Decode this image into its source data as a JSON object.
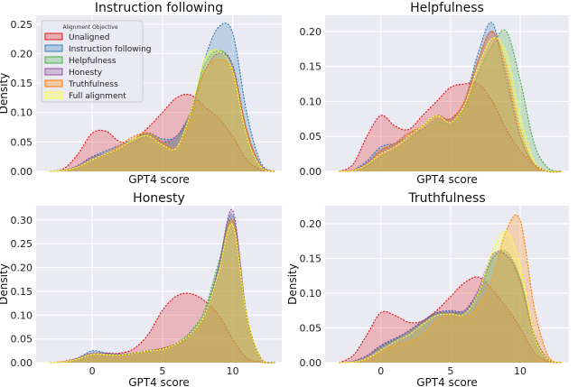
{
  "chart_data": [
    {
      "type": "area",
      "title": "Instruction following",
      "xlabel": "GPT4 score",
      "ylabel": "Density",
      "xlim": [
        -4,
        13.5
      ],
      "ylim": [
        0,
        0.265
      ],
      "yticks": [
        "0.00",
        "0.05",
        "0.10",
        "0.15",
        "0.20",
        "0.25"
      ],
      "xticks": [],
      "grid": true,
      "legend": {
        "title": "Alignment Objective",
        "placement": "top-left"
      },
      "x": [
        -3,
        -2,
        -1,
        0,
        1,
        2,
        3,
        4,
        5,
        6,
        7,
        8,
        9,
        10,
        11,
        12,
        13
      ],
      "series": [
        {
          "name": "Unaligned",
          "values": [
            0,
            0.005,
            0.03,
            0.065,
            0.068,
            0.05,
            0.055,
            0.075,
            0.1,
            0.125,
            0.13,
            0.11,
            0.09,
            0.06,
            0.02,
            0.003,
            0
          ]
        },
        {
          "name": "Instruction following",
          "values": [
            0,
            0.002,
            0.01,
            0.025,
            0.035,
            0.045,
            0.055,
            0.065,
            0.055,
            0.06,
            0.1,
            0.19,
            0.245,
            0.235,
            0.1,
            0.015,
            0
          ]
        },
        {
          "name": "Helpfulness",
          "values": [
            0,
            0.002,
            0.01,
            0.025,
            0.03,
            0.04,
            0.055,
            0.065,
            0.05,
            0.055,
            0.1,
            0.18,
            0.205,
            0.18,
            0.07,
            0.01,
            0
          ]
        },
        {
          "name": "Honesty",
          "values": [
            0,
            0.002,
            0.01,
            0.025,
            0.03,
            0.04,
            0.05,
            0.06,
            0.05,
            0.06,
            0.1,
            0.17,
            0.2,
            0.18,
            0.07,
            0.01,
            0
          ]
        },
        {
          "name": "Truthfulness",
          "values": [
            0,
            0.002,
            0.008,
            0.02,
            0.03,
            0.045,
            0.06,
            0.065,
            0.05,
            0.04,
            0.09,
            0.17,
            0.19,
            0.17,
            0.07,
            0.01,
            0
          ]
        },
        {
          "name": "Full alignment",
          "values": [
            0,
            0.002,
            0.008,
            0.02,
            0.03,
            0.04,
            0.055,
            0.06,
            0.045,
            0.04,
            0.1,
            0.19,
            0.205,
            0.17,
            0.06,
            0.008,
            0
          ]
        }
      ]
    },
    {
      "type": "area",
      "title": "Helpfulness",
      "xlabel": "GPT4 score",
      "ylabel": "",
      "xlim": [
        -4,
        13.5
      ],
      "ylim": [
        0,
        0.223
      ],
      "yticks": [
        "0.00",
        "0.05",
        "0.10",
        "0.15",
        "0.20"
      ],
      "xticks": [],
      "grid": true,
      "x": [
        -3,
        -2,
        -1,
        0,
        1,
        2,
        3,
        4,
        5,
        6,
        7,
        8,
        9,
        10,
        11,
        12,
        13
      ],
      "series": [
        {
          "name": "Unaligned",
          "values": [
            0,
            0.01,
            0.05,
            0.08,
            0.065,
            0.06,
            0.08,
            0.1,
            0.12,
            0.125,
            0.125,
            0.1,
            0.06,
            0.03,
            0.01,
            0,
            0
          ]
        },
        {
          "name": "Instruction following",
          "values": [
            0,
            0.002,
            0.015,
            0.035,
            0.04,
            0.05,
            0.065,
            0.08,
            0.075,
            0.1,
            0.17,
            0.212,
            0.13,
            0.05,
            0.01,
            0,
            0
          ]
        },
        {
          "name": "Helpfulness",
          "values": [
            0,
            0.001,
            0.008,
            0.02,
            0.03,
            0.045,
            0.06,
            0.07,
            0.07,
            0.09,
            0.14,
            0.18,
            0.2,
            0.13,
            0.04,
            0.005,
            0
          ]
        },
        {
          "name": "Honesty",
          "values": [
            0,
            0.002,
            0.012,
            0.03,
            0.04,
            0.055,
            0.06,
            0.075,
            0.075,
            0.1,
            0.16,
            0.2,
            0.14,
            0.05,
            0.01,
            0,
            0
          ]
        },
        {
          "name": "Truthfulness",
          "values": [
            0,
            0.002,
            0.01,
            0.03,
            0.04,
            0.055,
            0.065,
            0.08,
            0.075,
            0.1,
            0.16,
            0.2,
            0.15,
            0.06,
            0.01,
            0,
            0
          ]
        },
        {
          "name": "Full alignment",
          "values": [
            0,
            0.001,
            0.01,
            0.025,
            0.035,
            0.05,
            0.065,
            0.08,
            0.07,
            0.095,
            0.15,
            0.19,
            0.17,
            0.08,
            0.015,
            0,
            0
          ]
        }
      ]
    },
    {
      "type": "area",
      "title": "Honesty",
      "xlabel": "GPT4 score",
      "ylabel": "Density",
      "xlim": [
        -4,
        13.5
      ],
      "ylim": [
        0,
        0.33
      ],
      "yticks": [
        "0.00",
        "0.05",
        "0.10",
        "0.15",
        "0.20",
        "0.25",
        "0.30"
      ],
      "xticks": [
        "0",
        "5",
        "10"
      ],
      "grid": true,
      "x": [
        -3,
        -2,
        -1,
        0,
        1,
        2,
        3,
        4,
        5,
        6,
        7,
        8,
        9,
        10,
        11,
        12,
        13
      ],
      "series": [
        {
          "name": "Unaligned",
          "values": [
            0,
            0.003,
            0.01,
            0.02,
            0.02,
            0.02,
            0.03,
            0.06,
            0.11,
            0.14,
            0.145,
            0.13,
            0.1,
            0.05,
            0.01,
            0.001,
            0
          ]
        },
        {
          "name": "Instruction following",
          "values": [
            0,
            0.002,
            0.01,
            0.025,
            0.02,
            0.017,
            0.02,
            0.025,
            0.03,
            0.04,
            0.06,
            0.1,
            0.2,
            0.31,
            0.1,
            0.01,
            0
          ]
        },
        {
          "name": "Helpfulness",
          "values": [
            0,
            0.002,
            0.01,
            0.02,
            0.018,
            0.017,
            0.02,
            0.025,
            0.03,
            0.04,
            0.065,
            0.11,
            0.21,
            0.3,
            0.1,
            0.01,
            0
          ]
        },
        {
          "name": "Honesty",
          "values": [
            0,
            0.002,
            0.01,
            0.02,
            0.018,
            0.017,
            0.02,
            0.025,
            0.03,
            0.04,
            0.06,
            0.1,
            0.2,
            0.32,
            0.1,
            0.01,
            0
          ]
        },
        {
          "name": "Truthfulness",
          "values": [
            0,
            0.002,
            0.008,
            0.018,
            0.017,
            0.016,
            0.02,
            0.025,
            0.03,
            0.04,
            0.06,
            0.1,
            0.19,
            0.3,
            0.1,
            0.01,
            0
          ]
        },
        {
          "name": "Full alignment",
          "values": [
            0,
            0.002,
            0.008,
            0.018,
            0.017,
            0.016,
            0.02,
            0.025,
            0.028,
            0.04,
            0.06,
            0.1,
            0.19,
            0.29,
            0.1,
            0.01,
            0
          ]
        }
      ]
    },
    {
      "type": "area",
      "title": "Truthfulness",
      "xlabel": "GPT4 score",
      "ylabel": "Density",
      "xlim": [
        -4,
        13.5
      ],
      "ylim": [
        0,
        0.226
      ],
      "yticks": [
        "0.00",
        "0.05",
        "0.10",
        "0.15",
        "0.20"
      ],
      "xticks": [
        "0",
        "5",
        "10"
      ],
      "grid": true,
      "x": [
        -3,
        -2,
        -1,
        0,
        1,
        2,
        3,
        4,
        5,
        6,
        7,
        8,
        9,
        10,
        11,
        12,
        13
      ],
      "series": [
        {
          "name": "Unaligned",
          "values": [
            0,
            0.01,
            0.04,
            0.072,
            0.068,
            0.058,
            0.06,
            0.075,
            0.095,
            0.115,
            0.123,
            0.105,
            0.08,
            0.05,
            0.015,
            0.002,
            0
          ]
        },
        {
          "name": "Instruction following",
          "values": [
            0,
            0.002,
            0.01,
            0.025,
            0.035,
            0.045,
            0.06,
            0.072,
            0.075,
            0.075,
            0.1,
            0.15,
            0.155,
            0.12,
            0.04,
            0.005,
            0
          ]
        },
        {
          "name": "Helpfulness",
          "values": [
            0,
            0.002,
            0.01,
            0.022,
            0.033,
            0.045,
            0.058,
            0.07,
            0.072,
            0.072,
            0.1,
            0.15,
            0.16,
            0.12,
            0.04,
            0.005,
            0
          ]
        },
        {
          "name": "Honesty",
          "values": [
            0,
            0.002,
            0.01,
            0.024,
            0.034,
            0.046,
            0.06,
            0.072,
            0.073,
            0.075,
            0.105,
            0.155,
            0.155,
            0.115,
            0.04,
            0.005,
            0
          ]
        },
        {
          "name": "Truthfulness",
          "values": [
            0,
            0.001,
            0.005,
            0.015,
            0.025,
            0.03,
            0.04,
            0.06,
            0.07,
            0.065,
            0.08,
            0.12,
            0.19,
            0.205,
            0.08,
            0.01,
            0
          ]
        },
        {
          "name": "Full alignment",
          "values": [
            0,
            0.001,
            0.006,
            0.018,
            0.03,
            0.04,
            0.055,
            0.068,
            0.07,
            0.07,
            0.1,
            0.16,
            0.19,
            0.14,
            0.04,
            0.005,
            0
          ]
        }
      ]
    }
  ],
  "colors": {
    "Unaligned": "#e41a1c",
    "Instruction following": "#377eb8",
    "Helpfulness": "#4daf4a",
    "Honesty": "#984ea3",
    "Truthfulness": "#ff7f00",
    "Full alignment": "#ffff33",
    "background": "#eaeaf2"
  }
}
